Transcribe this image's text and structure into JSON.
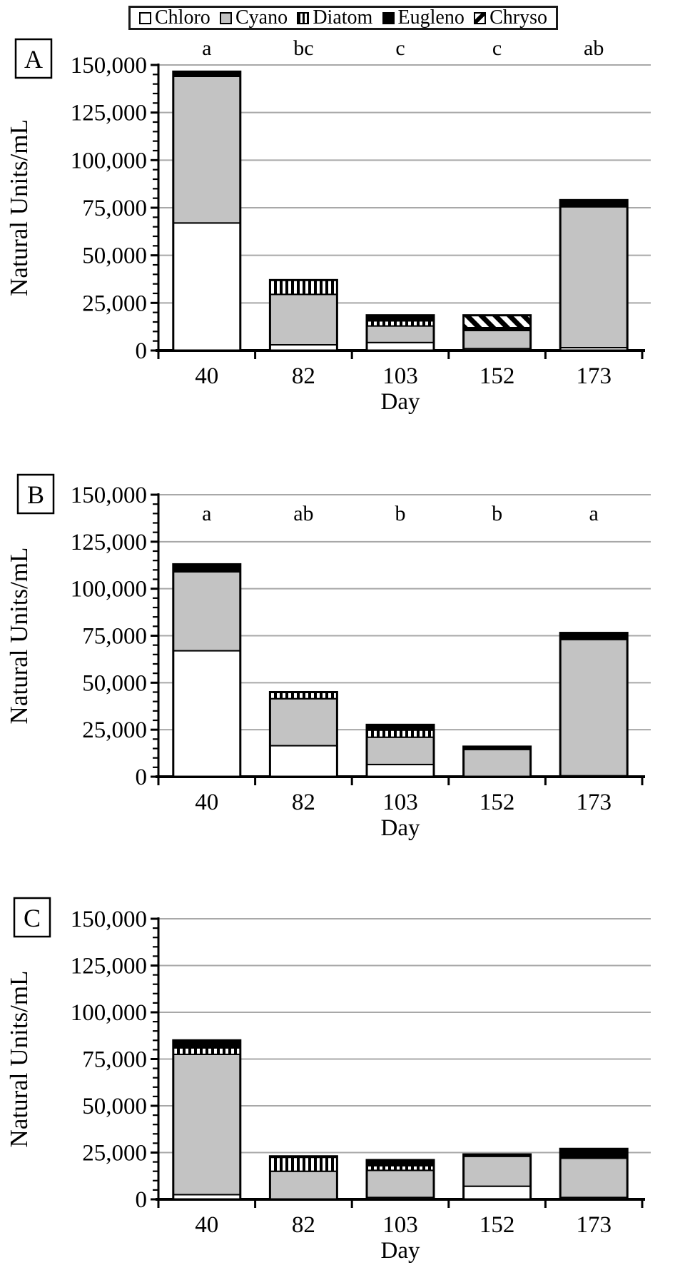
{
  "figure": {
    "type": "three-panel stacked bar figure",
    "panels_count": 3
  },
  "legend": {
    "items": [
      {
        "label": "Chloro",
        "swatch": "white"
      },
      {
        "label": "Cyano",
        "swatch": "gray"
      },
      {
        "label": "Diatom",
        "swatch": "vertical-stripes"
      },
      {
        "label": "Eugleno",
        "swatch": "black"
      },
      {
        "label": "Chryso",
        "swatch": "diagonal-stripes"
      }
    ]
  },
  "axis": {
    "y_label": "Natural Units/mL",
    "x_label": "Day",
    "y_tick_labels": [
      "0",
      "25,000",
      "50,000",
      "75,000",
      "100,000",
      "125,000",
      "150,000"
    ],
    "y_max": 150000,
    "y_major_step": 25000,
    "y_minor_step": 5000,
    "categories": [
      "40",
      "82",
      "103",
      "152",
      "173"
    ],
    "grid": "horizontal major gridlines only"
  },
  "colors": {
    "cyano_fill": "#c3c3c3",
    "grid_line": "#a8a8a8",
    "text": "#000000",
    "bar_border": "#000000"
  },
  "chart_data": [
    {
      "panel": "A",
      "type": "bar",
      "stacked": true,
      "categories": [
        "40",
        "82",
        "103",
        "152",
        "173"
      ],
      "ylim": [
        0,
        150000
      ],
      "significance_letters": [
        "a",
        "bc",
        "c",
        "c",
        "ab"
      ],
      "significance_position": "above-plot",
      "series": [
        {
          "name": "Chloro",
          "values": [
            67000,
            3000,
            4200,
            1000,
            1500
          ]
        },
        {
          "name": "Cyano",
          "values": [
            77000,
            26500,
            8700,
            9500,
            74000
          ]
        },
        {
          "name": "Diatom",
          "values": [
            0,
            7500,
            2700,
            0,
            0
          ]
        },
        {
          "name": "Eugleno",
          "values": [
            2500,
            0,
            2900,
            1500,
            3500
          ]
        },
        {
          "name": "Chryso",
          "values": [
            0,
            0,
            0,
            6500,
            0
          ]
        }
      ],
      "totals_approx": [
        146500,
        37000,
        18500,
        18500,
        79000
      ]
    },
    {
      "panel": "B",
      "type": "bar",
      "stacked": true,
      "categories": [
        "40",
        "82",
        "103",
        "152",
        "173"
      ],
      "ylim": [
        0,
        150000
      ],
      "significance_letters": [
        "a",
        "ab",
        "b",
        "b",
        "a"
      ],
      "significance_position": "inside-plot-top",
      "series": [
        {
          "name": "Chloro",
          "values": [
            67000,
            16500,
            6500,
            0,
            500
          ]
        },
        {
          "name": "Cyano",
          "values": [
            42000,
            25000,
            14500,
            14500,
            72500
          ]
        },
        {
          "name": "Diatom",
          "values": [
            0,
            3500,
            3800,
            0,
            0
          ]
        },
        {
          "name": "Eugleno",
          "values": [
            4000,
            0,
            2800,
            1500,
            3500
          ]
        },
        {
          "name": "Chryso",
          "values": [
            0,
            0,
            0,
            0,
            0
          ]
        }
      ],
      "totals_approx": [
        113000,
        45000,
        27600,
        16000,
        76500
      ]
    },
    {
      "panel": "C",
      "type": "bar",
      "stacked": true,
      "categories": [
        "40",
        "82",
        "103",
        "152",
        "173"
      ],
      "ylim": [
        0,
        150000
      ],
      "significance_letters": [],
      "significance_position": "none",
      "series": [
        {
          "name": "Chloro",
          "values": [
            2500,
            0,
            1000,
            7000,
            1000
          ]
        },
        {
          "name": "Cyano",
          "values": [
            75000,
            15000,
            14500,
            16000,
            21000
          ]
        },
        {
          "name": "Diatom",
          "values": [
            3500,
            7500,
            2500,
            0,
            0
          ]
        },
        {
          "name": "Eugleno",
          "values": [
            4000,
            500,
            3000,
            1000,
            5000
          ]
        },
        {
          "name": "Chryso",
          "values": [
            0,
            0,
            0,
            0,
            0
          ]
        }
      ],
      "totals_approx": [
        85000,
        23000,
        21000,
        24000,
        27000
      ]
    }
  ]
}
